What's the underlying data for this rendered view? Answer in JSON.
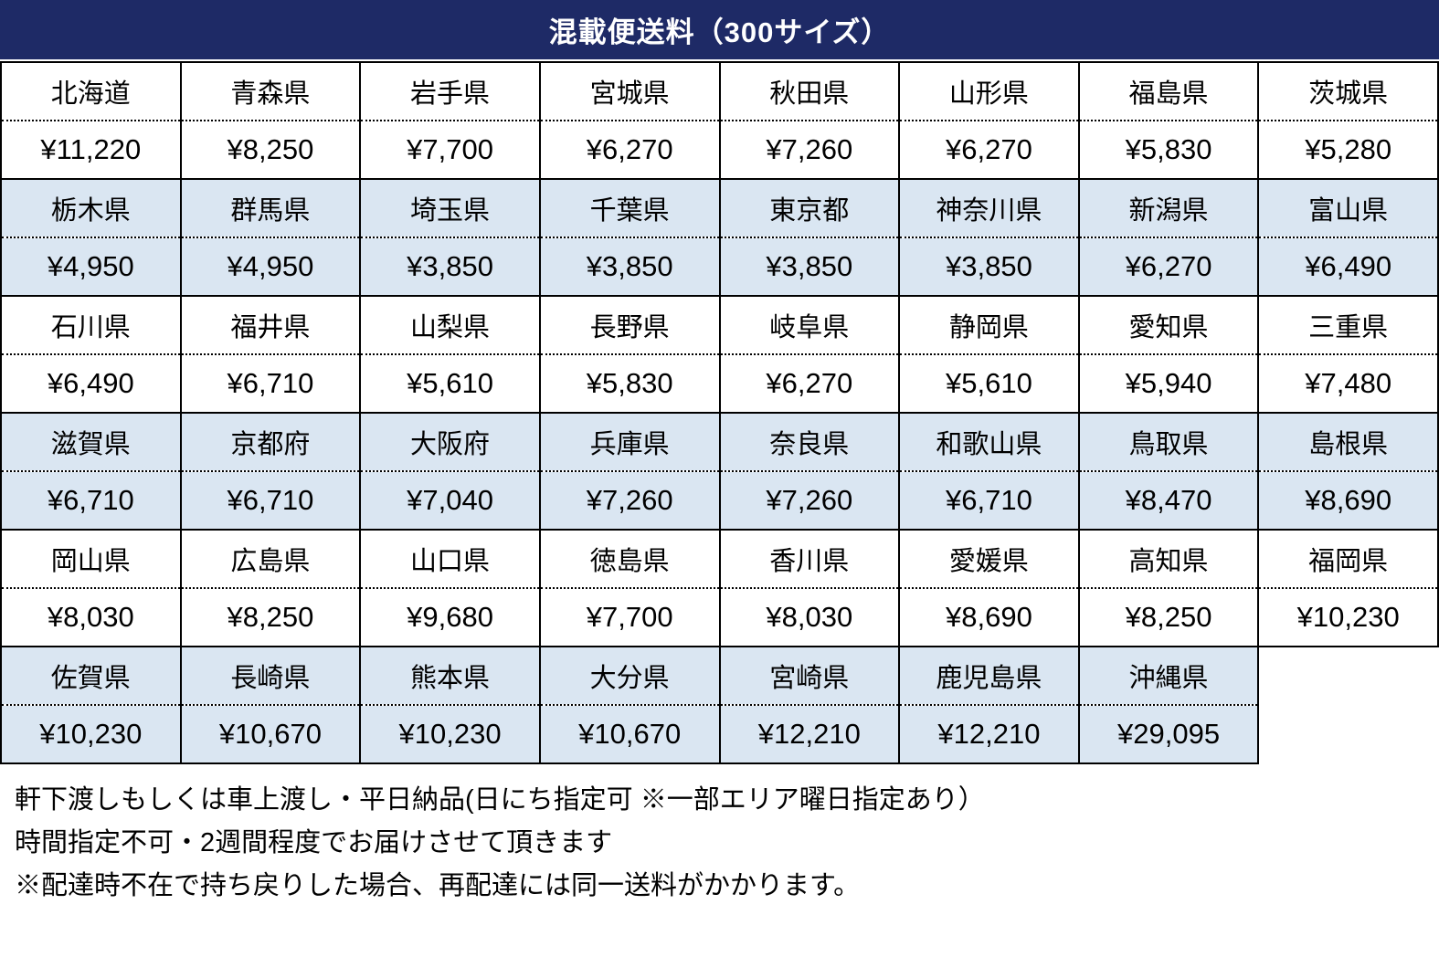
{
  "title": "混載便送料（300サイズ）",
  "colors": {
    "header_bg": "#1e2a66",
    "header_text": "#ffffff",
    "shaded_row_bg": "#dae6f2",
    "border": "#000000"
  },
  "table": {
    "columns": 8,
    "groups": [
      {
        "shaded": false,
        "cells": [
          {
            "name": "北海道",
            "price": "¥11,220"
          },
          {
            "name": "青森県",
            "price": "¥8,250"
          },
          {
            "name": "岩手県",
            "price": "¥7,700"
          },
          {
            "name": "宮城県",
            "price": "¥6,270"
          },
          {
            "name": "秋田県",
            "price": "¥7,260"
          },
          {
            "name": "山形県",
            "price": "¥6,270"
          },
          {
            "name": "福島県",
            "price": "¥5,830"
          },
          {
            "name": "茨城県",
            "price": "¥5,280"
          }
        ]
      },
      {
        "shaded": true,
        "cells": [
          {
            "name": "栃木県",
            "price": "¥4,950"
          },
          {
            "name": "群馬県",
            "price": "¥4,950"
          },
          {
            "name": "埼玉県",
            "price": "¥3,850"
          },
          {
            "name": "千葉県",
            "price": "¥3,850"
          },
          {
            "name": "東京都",
            "price": "¥3,850"
          },
          {
            "name": "神奈川県",
            "price": "¥3,850"
          },
          {
            "name": "新潟県",
            "price": "¥6,270"
          },
          {
            "name": "富山県",
            "price": "¥6,490"
          }
        ]
      },
      {
        "shaded": false,
        "cells": [
          {
            "name": "石川県",
            "price": "¥6,490"
          },
          {
            "name": "福井県",
            "price": "¥6,710"
          },
          {
            "name": "山梨県",
            "price": "¥5,610"
          },
          {
            "name": "長野県",
            "price": "¥5,830"
          },
          {
            "name": "岐阜県",
            "price": "¥6,270"
          },
          {
            "name": "静岡県",
            "price": "¥5,610"
          },
          {
            "name": "愛知県",
            "price": "¥5,940"
          },
          {
            "name": "三重県",
            "price": "¥7,480"
          }
        ]
      },
      {
        "shaded": true,
        "cells": [
          {
            "name": "滋賀県",
            "price": "¥6,710"
          },
          {
            "name": "京都府",
            "price": "¥6,710"
          },
          {
            "name": "大阪府",
            "price": "¥7,040"
          },
          {
            "name": "兵庫県",
            "price": "¥7,260"
          },
          {
            "name": "奈良県",
            "price": "¥7,260"
          },
          {
            "name": "和歌山県",
            "price": "¥6,710"
          },
          {
            "name": "鳥取県",
            "price": "¥8,470"
          },
          {
            "name": "島根県",
            "price": "¥8,690"
          }
        ]
      },
      {
        "shaded": false,
        "cells": [
          {
            "name": "岡山県",
            "price": "¥8,030"
          },
          {
            "name": "広島県",
            "price": "¥8,250"
          },
          {
            "name": "山口県",
            "price": "¥9,680"
          },
          {
            "name": "徳島県",
            "price": "¥7,700"
          },
          {
            "name": "香川県",
            "price": "¥8,030"
          },
          {
            "name": "愛媛県",
            "price": "¥8,690"
          },
          {
            "name": "高知県",
            "price": "¥8,250"
          },
          {
            "name": "福岡県",
            "price": "¥10,230"
          }
        ]
      },
      {
        "shaded": true,
        "cells": [
          {
            "name": "佐賀県",
            "price": "¥10,230"
          },
          {
            "name": "長崎県",
            "price": "¥10,670"
          },
          {
            "name": "熊本県",
            "price": "¥10,230"
          },
          {
            "name": "大分県",
            "price": "¥10,670"
          },
          {
            "name": "宮崎県",
            "price": "¥12,210"
          },
          {
            "name": "鹿児島県",
            "price": "¥12,210"
          },
          {
            "name": "沖縄県",
            "price": "¥29,095"
          },
          {
            "name": "",
            "price": ""
          }
        ]
      }
    ]
  },
  "notes": [
    "軒下渡しもしくは車上渡し・平日納品(日にち指定可 ※一部エリア曜日指定あり）",
    "時間指定不可・2週間程度でお届けさせて頂きます",
    "※配達時不在で持ち戻りした場合、再配達には同一送料がかかります。"
  ]
}
